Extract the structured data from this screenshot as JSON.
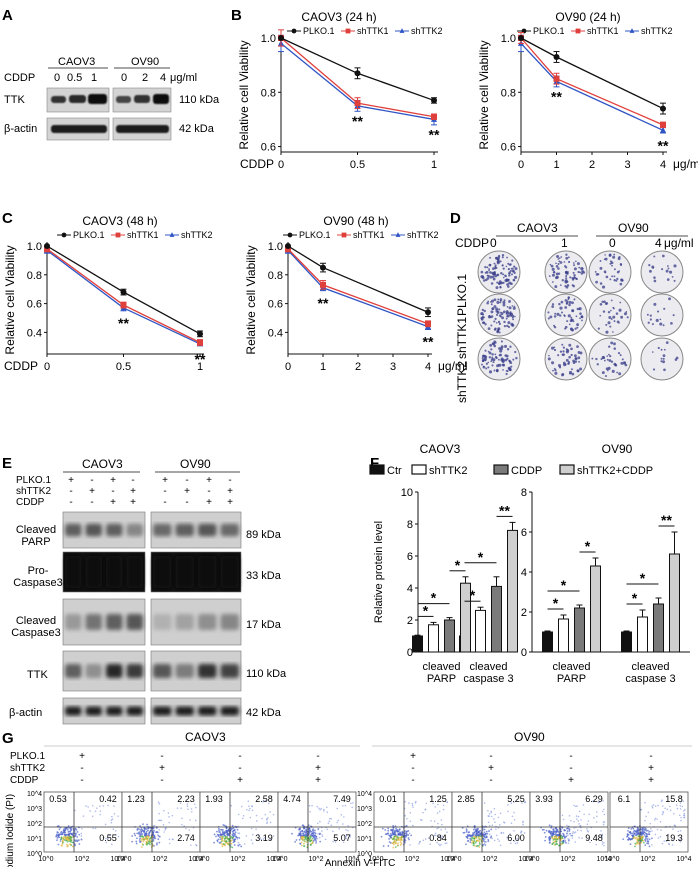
{
  "panels": {
    "A": {
      "label": "A",
      "groups": [
        "CAOV3",
        "OV90"
      ],
      "cddp_label": "CDDP",
      "doses_caov3": [
        "0",
        "0.5",
        "1"
      ],
      "doses_ov90": [
        "0",
        "2",
        "4"
      ],
      "unit": "μg/ml",
      "rows": [
        "TTK",
        "β-actin"
      ],
      "kda": [
        "110 kDa",
        "42 kDa"
      ]
    },
    "B": {
      "label": "B"
    },
    "C": {
      "label": "C"
    },
    "D": {
      "label": "D",
      "groups": [
        "CAOV3",
        "OV90"
      ],
      "cddp_label": "CDDP",
      "doses": [
        "0",
        "1",
        "0",
        "4"
      ],
      "unit": "μg/ml",
      "rows": [
        "PLKO.1",
        "shTTK1",
        "shTTK2"
      ]
    },
    "E": {
      "label": "E",
      "groups": [
        "CAOV3",
        "OV90"
      ],
      "conditions": [
        "PLKO.1",
        "shTTK2",
        "CDDP"
      ],
      "marks": [
        [
          "+",
          "-",
          "+",
          "-"
        ],
        [
          "-",
          "+",
          "-",
          "+"
        ],
        [
          "-",
          "-",
          "+",
          "+"
        ]
      ],
      "rows": [
        "Cleaved PARP",
        "Pro-Caspase3",
        "Cleaved Caspase3",
        "TTK",
        "β-actin"
      ],
      "kda": [
        "89 kDa",
        "33 kDa",
        "17 kDa",
        "110 kDa",
        "42 kDa"
      ]
    },
    "F": {
      "label": "F"
    },
    "G": {
      "label": "G",
      "groups": [
        "CAOV3",
        "OV90"
      ],
      "conditions": [
        "PLKO.1",
        "shTTK2",
        "CDDP"
      ],
      "marks": [
        [
          "+",
          "-",
          "-",
          "-"
        ],
        [
          "-",
          "+",
          "-",
          "+"
        ],
        [
          "-",
          "-",
          "+",
          "+"
        ]
      ],
      "ylabel": "Prodium Iodide (PI)",
      "xlabel": "Annexin V-FITC",
      "yticks": [
        "10^4",
        "10^3",
        "10^2",
        "10^1",
        "10^0"
      ],
      "xticks": [
        "10^0",
        "10^2",
        "10^4"
      ],
      "quadrants": [
        [
          "0.53",
          "0.42",
          "0.55"
        ],
        [
          "1.23",
          "2.23",
          "2.74"
        ],
        [
          "1.93",
          "2.58",
          "3.19"
        ],
        [
          "4.74",
          "7.49",
          "5.07"
        ],
        [
          "0.01",
          "1.25",
          "0.84"
        ],
        [
          "2.85",
          "5.25",
          "6.00"
        ],
        [
          "3.93",
          "6.29",
          "9.48"
        ],
        [
          "6.1",
          "15.8",
          "19.3"
        ]
      ]
    }
  },
  "chart_data": [
    {
      "type": "line",
      "panel": "B",
      "title": "CAOV3 (24 h)",
      "xlabel": "CDDP",
      "ylabel": "Relative cell Viability",
      "x": [
        0,
        0.5,
        1
      ],
      "xticks": [
        "0",
        "0.5",
        "1"
      ],
      "yticks": [
        "1.0",
        "0.8",
        "0.6"
      ],
      "ylim": [
        0.58,
        1.0
      ],
      "series": [
        {
          "name": "PLKO.1",
          "values": [
            1.0,
            0.87,
            0.77
          ],
          "err": [
            0.0,
            0.02,
            0.01
          ]
        },
        {
          "name": "shTTK1",
          "values": [
            1.0,
            0.76,
            0.71
          ],
          "err": [
            0.03,
            0.02,
            0.01
          ]
        },
        {
          "name": "shTTK2",
          "values": [
            0.98,
            0.75,
            0.7
          ],
          "err": [
            0.03,
            0.02,
            0.02
          ]
        }
      ],
      "annotations": [
        {
          "x": 0.5,
          "text": "**"
        },
        {
          "x": 1,
          "text": "**"
        }
      ]
    },
    {
      "type": "line",
      "panel": "B",
      "title": "OV90 (24 h)",
      "xlabel": "μg/ml",
      "ylabel": "Relative cell Viability",
      "x": [
        0,
        1,
        4
      ],
      "xticks": [
        "0",
        "1",
        "2",
        "3",
        "4"
      ],
      "yticks": [
        "1.0",
        "0.8",
        "0.6"
      ],
      "ylim": [
        0.58,
        1.0
      ],
      "series": [
        {
          "name": "PLKO.1",
          "values": [
            1.0,
            0.93,
            0.74
          ],
          "err": [
            0.0,
            0.02,
            0.02
          ]
        },
        {
          "name": "shTTK1",
          "values": [
            1.0,
            0.85,
            0.68
          ],
          "err": [
            0.02,
            0.02,
            0.01
          ]
        },
        {
          "name": "shTTK2",
          "values": [
            0.98,
            0.84,
            0.66
          ],
          "err": [
            0.03,
            0.02,
            0.01
          ]
        }
      ],
      "annotations": [
        {
          "x": 1,
          "text": "**"
        },
        {
          "x": 4,
          "text": "**"
        }
      ]
    },
    {
      "type": "line",
      "panel": "C",
      "title": "CAOV3 (48 h)",
      "xlabel": "CDDP",
      "ylabel": "Relative cell Viability",
      "x": [
        0,
        0.5,
        1
      ],
      "xticks": [
        "0",
        "0.5",
        "1"
      ],
      "yticks": [
        "1.0",
        "0.8",
        "0.6",
        "0.4"
      ],
      "ylim": [
        0.25,
        1.0
      ],
      "series": [
        {
          "name": "PLKO.1",
          "values": [
            1.0,
            0.68,
            0.39
          ],
          "err": [
            0.0,
            0.02,
            0.02
          ]
        },
        {
          "name": "shTTK1",
          "values": [
            0.98,
            0.59,
            0.33
          ],
          "err": [
            0.02,
            0.02,
            0.02
          ]
        },
        {
          "name": "shTTK2",
          "values": [
            0.97,
            0.57,
            0.32
          ],
          "err": [
            0.02,
            0.02,
            0.01
          ]
        }
      ],
      "annotations": [
        {
          "x": 0.5,
          "text": "**"
        },
        {
          "x": 1,
          "text": "**"
        }
      ]
    },
    {
      "type": "line",
      "panel": "C",
      "title": "OV90 (48 h)",
      "xlabel": "μg/ml",
      "ylabel": "Relative cell Viability",
      "x": [
        0,
        1,
        4
      ],
      "xticks": [
        "0",
        "1",
        "2",
        "3",
        "4"
      ],
      "yticks": [
        "1.0",
        "0.8",
        "0.6",
        "0.4"
      ],
      "ylim": [
        0.25,
        1.0
      ],
      "series": [
        {
          "name": "PLKO.1",
          "values": [
            1.0,
            0.85,
            0.54
          ],
          "err": [
            0.0,
            0.03,
            0.03
          ]
        },
        {
          "name": "shTTK1",
          "values": [
            0.98,
            0.73,
            0.46
          ],
          "err": [
            0.02,
            0.03,
            0.02
          ]
        },
        {
          "name": "shTTK2",
          "values": [
            0.97,
            0.71,
            0.44
          ],
          "err": [
            0.02,
            0.02,
            0.02
          ]
        }
      ],
      "annotations": [
        {
          "x": 1,
          "text": "**"
        },
        {
          "x": 4,
          "text": "**"
        }
      ]
    },
    {
      "type": "bar",
      "panel": "F",
      "title": "CAOV3",
      "ylabel": "Relative protein level",
      "categories": [
        "cleaved PARP",
        "cleaved caspase 3"
      ],
      "yticks": [
        "0",
        "2",
        "4",
        "6",
        "8",
        "10"
      ],
      "ylim": [
        0,
        10
      ],
      "legend": [
        "Ctr",
        "shTTK2",
        "CDDP",
        "shTTK2+CDDP"
      ],
      "series": [
        {
          "name": "Ctr",
          "values": [
            1.0,
            1.0
          ],
          "err": [
            0.05,
            0.05
          ]
        },
        {
          "name": "shTTK2",
          "values": [
            1.7,
            2.6
          ],
          "err": [
            0.15,
            0.2
          ]
        },
        {
          "name": "CDDP",
          "values": [
            2.0,
            4.1
          ],
          "err": [
            0.15,
            0.6
          ]
        },
        {
          "name": "shTTK2+CDDP",
          "values": [
            4.3,
            7.6
          ],
          "err": [
            0.4,
            0.5
          ]
        }
      ],
      "sig": [
        {
          "cat": 0,
          "pair": [
            0,
            1
          ],
          "text": "*"
        },
        {
          "cat": 0,
          "pair": [
            0,
            2
          ],
          "text": "*"
        },
        {
          "cat": 0,
          "pair": [
            2,
            3
          ],
          "text": "*"
        },
        {
          "cat": 1,
          "pair": [
            0,
            1
          ],
          "text": "*"
        },
        {
          "cat": 1,
          "pair": [
            0,
            2
          ],
          "text": "*"
        },
        {
          "cat": 1,
          "pair": [
            2,
            3
          ],
          "text": "**"
        }
      ]
    },
    {
      "type": "bar",
      "panel": "F",
      "title": "OV90",
      "ylabel": "",
      "categories": [
        "cleaved PARP",
        "cleaved caspase 3"
      ],
      "yticks": [
        "0",
        "2",
        "4",
        "6",
        "8"
      ],
      "ylim": [
        0,
        8
      ],
      "series": [
        {
          "name": "Ctr",
          "values": [
            1.0,
            1.0
          ],
          "err": [
            0.05,
            0.05
          ]
        },
        {
          "name": "shTTK2",
          "values": [
            1.65,
            1.75
          ],
          "err": [
            0.2,
            0.35
          ]
        },
        {
          "name": "CDDP",
          "values": [
            2.2,
            2.4
          ],
          "err": [
            0.15,
            0.3
          ]
        },
        {
          "name": "shTTK2+CDDP",
          "values": [
            4.3,
            4.9
          ],
          "err": [
            0.4,
            1.1
          ]
        }
      ],
      "sig": [
        {
          "cat": 0,
          "pair": [
            0,
            1
          ],
          "text": "*"
        },
        {
          "cat": 0,
          "pair": [
            0,
            2
          ],
          "text": "*"
        },
        {
          "cat": 0,
          "pair": [
            2,
            3
          ],
          "text": "*"
        },
        {
          "cat": 1,
          "pair": [
            0,
            1
          ],
          "text": "*"
        },
        {
          "cat": 1,
          "pair": [
            0,
            2
          ],
          "text": "*"
        },
        {
          "cat": 1,
          "pair": [
            2,
            3
          ],
          "text": "**"
        }
      ]
    }
  ]
}
